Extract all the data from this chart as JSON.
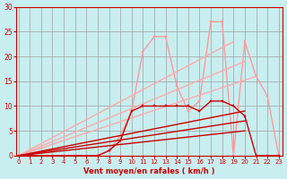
{
  "background_color": "#c8eef0",
  "grid_color": "#a0a0a0",
  "xlabel": "Vent moyen/en rafales ( km/h )",
  "xlabel_color": "#cc0000",
  "tick_color": "#cc0000",
  "xlim": [
    0,
    23
  ],
  "ylim": [
    0,
    30
  ],
  "yticks": [
    0,
    5,
    10,
    15,
    20,
    25,
    30
  ],
  "xticks": [
    0,
    1,
    2,
    3,
    4,
    5,
    6,
    7,
    8,
    9,
    10,
    11,
    12,
    13,
    14,
    15,
    16,
    17,
    18,
    19,
    20,
    21,
    22,
    23
  ],
  "lines": [
    {
      "x": [
        0,
        7,
        8,
        9,
        10,
        11,
        12,
        13,
        14,
        15,
        16,
        17,
        18,
        19,
        20,
        21,
        22,
        23
      ],
      "y": [
        0,
        0,
        1,
        4,
        9,
        21,
        24,
        24,
        14,
        9,
        11,
        27,
        27,
        0,
        23,
        16,
        12,
        0
      ],
      "color": "#ff9999",
      "lw": 1.0,
      "marker": "s",
      "ms": 2.0
    },
    {
      "x": [
        0,
        19
      ],
      "y": [
        0,
        23
      ],
      "color": "#ffaaaa",
      "lw": 1.0,
      "marker": null,
      "ms": 0
    },
    {
      "x": [
        0,
        20
      ],
      "y": [
        0,
        19
      ],
      "color": "#ffaaaa",
      "lw": 1.0,
      "marker": null,
      "ms": 0
    },
    {
      "x": [
        0,
        21
      ],
      "y": [
        0,
        16
      ],
      "color": "#ffaaaa",
      "lw": 1.0,
      "marker": null,
      "ms": 0
    },
    {
      "x": [
        0,
        7,
        8,
        9,
        10,
        11,
        12,
        13,
        14,
        15,
        16,
        17,
        18,
        19,
        20,
        21,
        22,
        23
      ],
      "y": [
        0,
        0,
        1,
        3,
        9,
        10,
        10,
        10,
        10,
        10,
        9,
        11,
        11,
        10,
        8,
        0,
        0,
        0
      ],
      "color": "#cc0000",
      "lw": 1.0,
      "marker": "s",
      "ms": 2.0
    },
    {
      "x": [
        0,
        20
      ],
      "y": [
        0,
        9
      ],
      "color": "#cc0000",
      "lw": 1.0,
      "marker": null,
      "ms": 0
    },
    {
      "x": [
        0,
        20
      ],
      "y": [
        0,
        7
      ],
      "color": "#cc0000",
      "lw": 1.0,
      "marker": null,
      "ms": 0
    },
    {
      "x": [
        0,
        20
      ],
      "y": [
        0,
        5
      ],
      "color": "#cc0000",
      "lw": 1.0,
      "marker": null,
      "ms": 0
    }
  ]
}
